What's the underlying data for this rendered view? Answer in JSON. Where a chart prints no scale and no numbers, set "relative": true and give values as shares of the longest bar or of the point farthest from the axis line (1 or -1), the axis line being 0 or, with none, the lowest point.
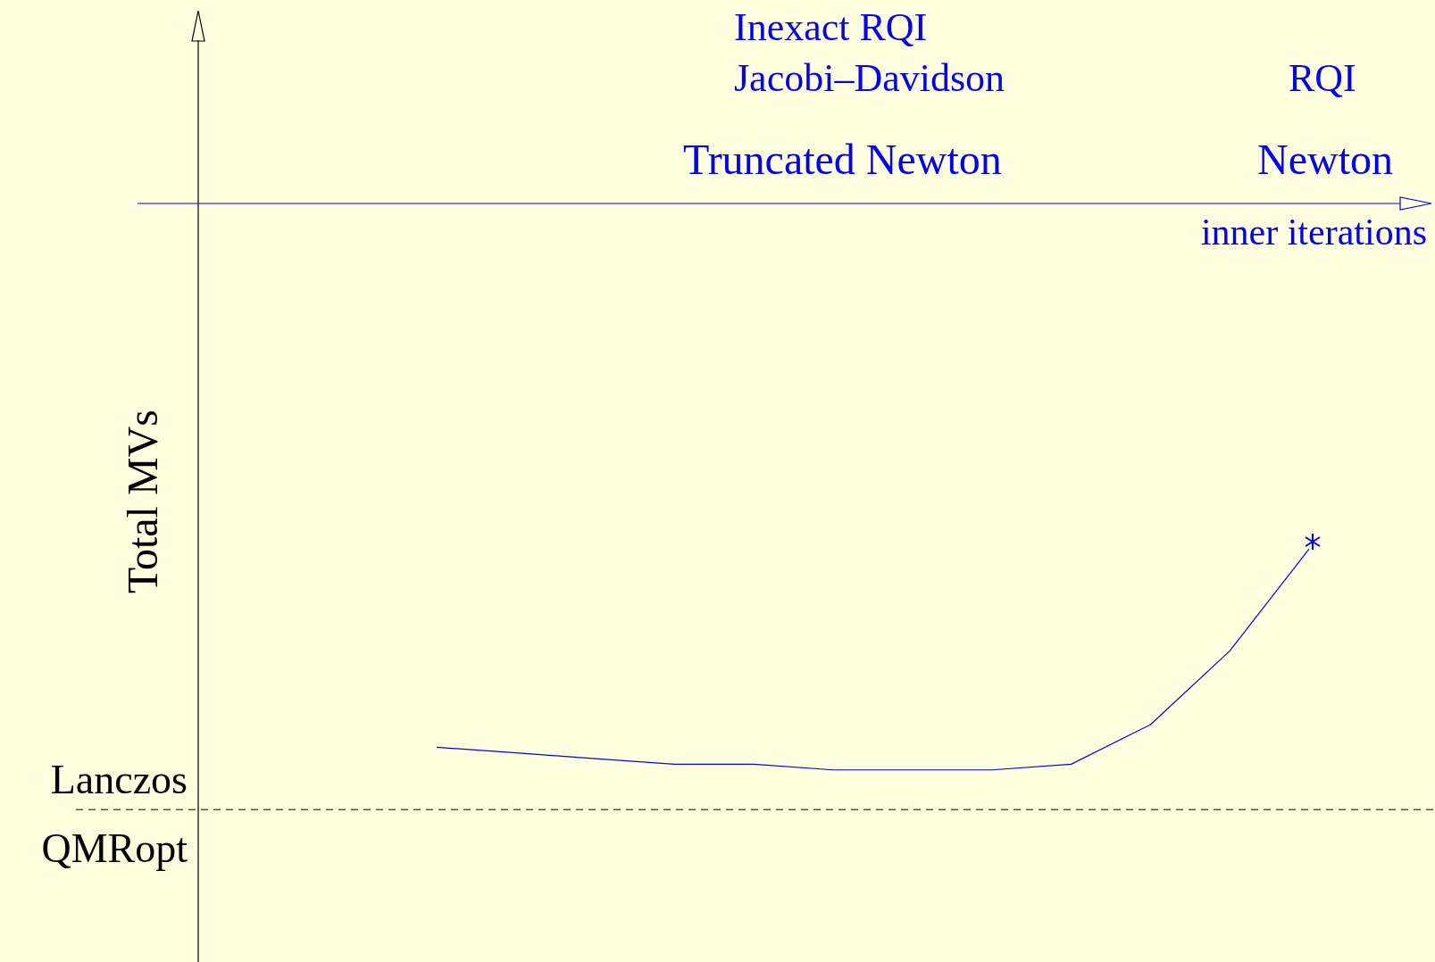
{
  "chart_data": {
    "type": "line",
    "relative": true,
    "xlabel": "inner iterations",
    "annotations": [
      "Inexact RQI",
      "Jacobi–Davidson",
      "Truncated Newton",
      "RQI",
      "Newton",
      "QMRopt",
      "Total MVs"
    ],
    "categories": [
      null,
      null,
      null,
      null,
      null,
      null,
      null,
      null,
      null,
      null,
      null,
      null
    ],
    "series": [
      {
        "color": "#0000ff",
        "values": [
          -0.96,
          -0.97,
          -0.98,
          -0.99,
          -0.99,
          -1.0,
          -1.0,
          -1.0,
          -0.99,
          -0.92,
          -0.79,
          -0.61
        ]
      }
    ],
    "ref_lines": [
      {
        "axis": "y",
        "value": -1.07,
        "label": "Lanczos",
        "color": "#000000",
        "line_style": "dashed"
      }
    ],
    "legend": false
  }
}
